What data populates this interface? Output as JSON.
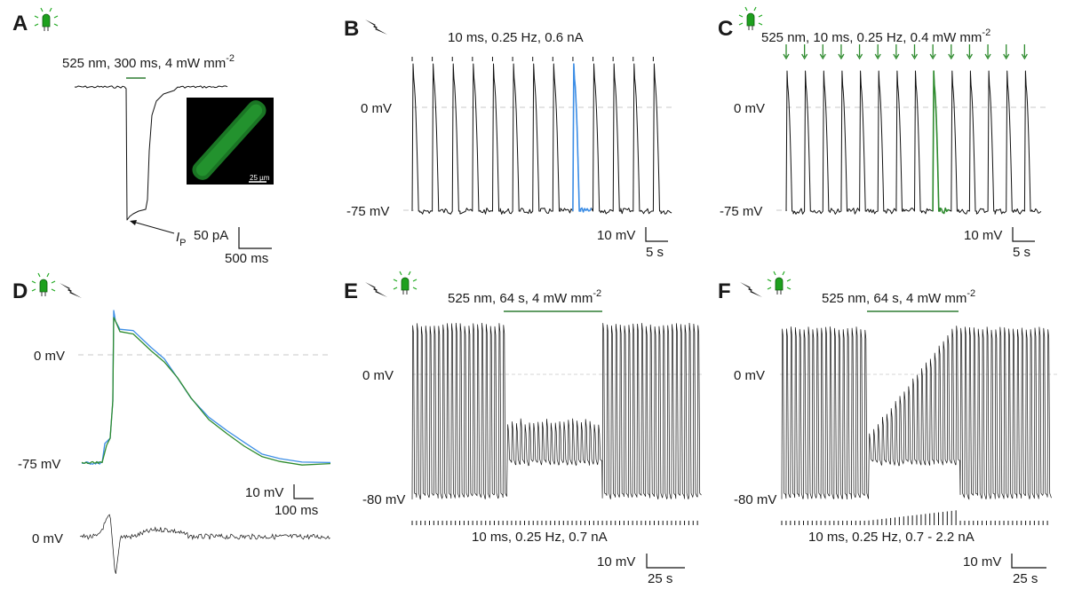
{
  "panels": {
    "A": {
      "label": "A",
      "stimulus": "525 nm, 300 ms, 4 mW mm",
      "stimulus_sup": "-2",
      "current_label": "I",
      "current_sub": "P",
      "scale_y": "50 pA",
      "scale_x": "500 ms",
      "inset_scalebar": "25 µm"
    },
    "B": {
      "label": "B",
      "stimulus": "10 ms, 0.25 Hz, 0.6 nA",
      "y0": "0 mV",
      "y1": "-75 mV",
      "scale_y": "10 mV",
      "scale_x": "5 s"
    },
    "C": {
      "label": "C",
      "stimulus": "525 nm, 10 ms, 0.25 Hz, 0.4 mW mm",
      "stimulus_sup": "-2",
      "y0": "0 mV",
      "y1": "-75 mV",
      "scale_y": "10 mV",
      "scale_x": "5 s"
    },
    "D": {
      "label": "D",
      "y0": "0 mV",
      "y1": "-75 mV",
      "y2": "0 mV",
      "scale_y": "10 mV",
      "scale_x": "100 ms"
    },
    "E": {
      "label": "E",
      "stimulus": "525 nm, 64 s, 4 mW mm",
      "stimulus_sup": "-2",
      "pulses": "10 ms, 0.25 Hz, 0.7 nA",
      "y0": "0 mV",
      "y1": "-80 mV",
      "scale_y": "10 mV",
      "scale_x": "25 s"
    },
    "F": {
      "label": "F",
      "stimulus": "525 nm, 64 s, 4 mW mm",
      "stimulus_sup": "-2",
      "pulses": "10 ms, 0.25 Hz, 0.7 - 2.2 nA",
      "y0": "0 mV",
      "y1": "-80 mV",
      "scale_y": "10 mV",
      "scale_x": "25 s"
    }
  },
  "colors": {
    "trace": "#111111",
    "electrical_highlight": "#3d8ee6",
    "optical_highlight": "#2e8b2e",
    "led": "#22aa22",
    "inset_cell": "#1f8a2a"
  },
  "icons": {
    "led": "green-led-icon",
    "electrode": "lightning-electrode-icon"
  },
  "chart_data": [
    {
      "type": "line",
      "panel": "A",
      "title": "",
      "series": [
        {
          "name": "",
          "points": [
            [
              -500,
              0
            ],
            [
              0,
              0
            ],
            [
              5,
              -340
            ],
            [
              20,
              -330
            ],
            [
              30,
              -290
            ],
            [
              40,
              -280
            ],
            [
              80,
              -25
            ],
            [
              200,
              -12
            ],
            [
              800,
              -2
            ]
          ]
        }
      ],
      "xlabel": "",
      "ylabel": "",
      "units": {
        "x": "ms",
        "y": "pA"
      }
    },
    {
      "type": "line",
      "panel": "B",
      "series": [
        {
          "name": "",
          "rest_mV": -75,
          "peak_mV": 30,
          "stim_times_s": [
            0,
            4,
            8,
            12,
            16,
            20,
            24,
            28,
            32,
            36,
            40,
            44,
            48
          ],
          "highlighted_beat": 8
        }
      ],
      "ylim": [
        -80,
        35
      ]
    },
    {
      "type": "line",
      "panel": "C",
      "series": [
        {
          "name": "",
          "rest_mV": -75,
          "peak_mV": 28,
          "stim_times_s": [
            0,
            4,
            8,
            12,
            16,
            20,
            24,
            28,
            32,
            36,
            40,
            44,
            48,
            52
          ],
          "highlighted_beat": 8
        }
      ],
      "ylim": [
        -80,
        35
      ]
    },
    {
      "type": "line",
      "panel": "D",
      "series": [
        {
          "name": "",
          "points": [
            [
              0,
              -75
            ],
            [
              20,
              -75
            ],
            [
              30,
              -65
            ],
            [
              40,
              30
            ],
            [
              60,
              25
            ],
            [
              120,
              0
            ],
            [
              200,
              -40
            ],
            [
              280,
              -65
            ],
            [
              350,
              -74
            ],
            [
              400,
              -75
            ]
          ]
        }
      ],
      "units": {
        "x": "ms",
        "y": "mV"
      }
    },
    {
      "type": "line",
      "panel": "E",
      "series": [
        {
          "name": "",
          "rest_mV": -80,
          "peak_mV": 30,
          "light_on_rest_mV": -50,
          "light_on_peak_mV": -25,
          "stim_period_s": 4
        }
      ],
      "ylim": [
        -85,
        35
      ]
    },
    {
      "type": "line",
      "panel": "F",
      "series": [
        {
          "name": "",
          "rest_mV": -80,
          "peak_mV": 32,
          "light_on_rest_mV": -50,
          "light_on_peak_range_mV": [
            -45,
            5
          ],
          "stim_amp_nA": [
            0.7,
            2.2
          ]
        }
      ],
      "ylim": [
        -85,
        35
      ]
    }
  ]
}
